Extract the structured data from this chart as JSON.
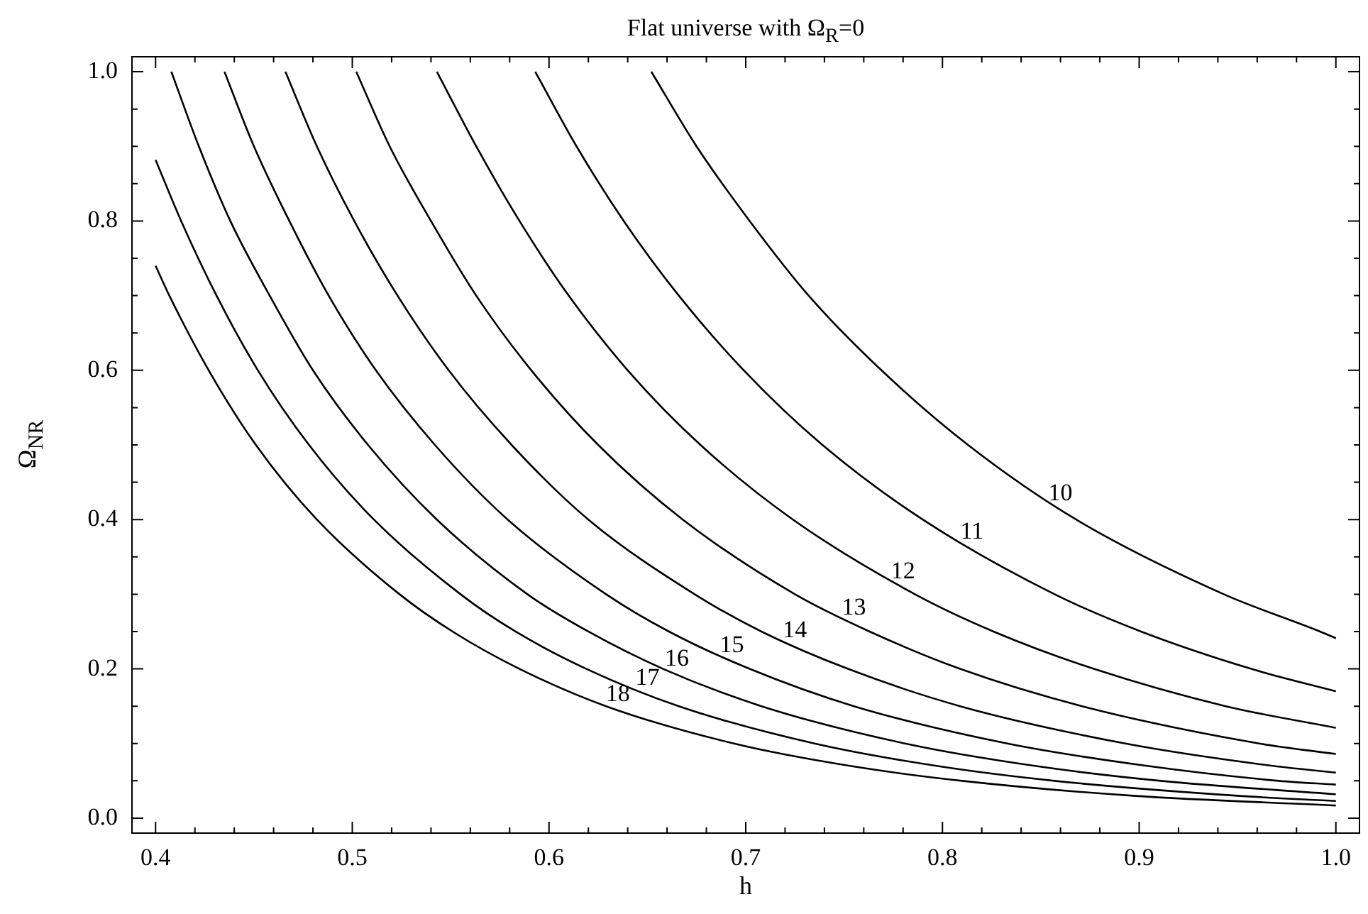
{
  "chart_data": {
    "type": "line",
    "title": "Flat universe with Ω$_{R}$=0",
    "xlabel": "h",
    "ylabel": "Ω$_{NR}$",
    "marker": "none",
    "line_style": "solid",
    "xlim": [
      0.388,
      1.012
    ],
    "ylim": [
      -0.02,
      1.02
    ],
    "xticks": [
      0.4,
      {
        "value": 0.42,
        "label": null
      },
      {
        "value": 0.44,
        "label": null
      },
      {
        "value": 0.46,
        "label": null
      },
      {
        "value": 0.48,
        "label": null
      },
      0.5,
      {
        "value": 0.52,
        "label": null
      },
      {
        "value": 0.54,
        "label": null
      },
      {
        "value": 0.56,
        "label": null
      },
      {
        "value": 0.58,
        "label": null
      },
      0.6,
      {
        "value": 0.62,
        "label": null
      },
      {
        "value": 0.64,
        "label": null
      },
      {
        "value": 0.66,
        "label": null
      },
      {
        "value": 0.68,
        "label": null
      },
      0.7,
      {
        "value": 0.72,
        "label": null
      },
      {
        "value": 0.74,
        "label": null
      },
      {
        "value": 0.76,
        "label": null
      },
      {
        "value": 0.78,
        "label": null
      },
      0.8,
      {
        "value": 0.82,
        "label": null
      },
      {
        "value": 0.84,
        "label": null
      },
      {
        "value": 0.86,
        "label": null
      },
      {
        "value": 0.88,
        "label": null
      },
      0.9,
      {
        "value": 0.92,
        "label": null
      },
      {
        "value": 0.94,
        "label": null
      },
      {
        "value": 0.96,
        "label": null
      },
      {
        "value": 0.98,
        "label": null
      },
      {
        "value": 1.0,
        "label": "1.0"
      }
    ],
    "yticks": [
      {
        "value": 0,
        "label": "0.0"
      },
      {
        "value": 0.05,
        "label": null
      },
      {
        "value": 0.1,
        "label": null
      },
      {
        "value": 0.15,
        "label": null
      },
      0.2,
      {
        "value": 0.25,
        "label": null
      },
      {
        "value": 0.3,
        "label": null
      },
      {
        "value": 0.35,
        "label": null
      },
      0.4,
      {
        "value": 0.45,
        "label": null
      },
      {
        "value": 0.5,
        "label": null
      },
      {
        "value": 0.55,
        "label": null
      },
      0.6,
      {
        "value": 0.65,
        "label": null
      },
      {
        "value": 0.7,
        "label": null
      },
      {
        "value": 0.75,
        "label": null
      },
      0.8,
      {
        "value": 0.85,
        "label": null
      },
      {
        "value": 0.9,
        "label": null
      },
      {
        "value": 0.95,
        "label": null
      },
      {
        "value": 1.0,
        "label": "1.0"
      }
    ],
    "series": [
      {
        "color": "#000000",
        "x": [
          0.652,
          0.675,
          0.702,
          0.732,
          0.769,
          0.813,
          0.868,
          0.943,
          0.992,
          1.0
        ],
        "values": [
          1.0,
          0.9,
          0.8,
          0.7,
          0.6,
          0.5,
          0.4,
          0.3,
          0.25,
          0.241
        ]
      },
      {
        "color": "#000000",
        "x": [
          0.593,
          0.614,
          0.638,
          0.666,
          0.699,
          0.739,
          0.79,
          0.857,
          0.901,
          0.957,
          1.0
        ],
        "values": [
          1.0,
          0.9,
          0.8,
          0.7,
          0.6,
          0.5,
          0.4,
          0.3,
          0.25,
          0.2,
          0.17
        ]
      },
      {
        "color": "#000000",
        "x": [
          0.543,
          0.563,
          0.585,
          0.61,
          0.64,
          0.677,
          0.724,
          0.786,
          0.826,
          0.877,
          0.944,
          1.0
        ],
        "values": [
          1.0,
          0.9,
          0.8,
          0.7,
          0.6,
          0.5,
          0.4,
          0.3,
          0.25,
          0.2,
          0.15,
          0.121
        ]
      },
      {
        "color": "#000000",
        "x": [
          0.502,
          0.519,
          0.54,
          0.563,
          0.591,
          0.625,
          0.668,
          0.725,
          0.763,
          0.809,
          0.871,
          0.961,
          1.0
        ],
        "values": [
          1.0,
          0.9,
          0.8,
          0.7,
          0.6,
          0.5,
          0.4,
          0.3,
          0.25,
          0.2,
          0.15,
          0.1,
          0.086
        ]
      },
      {
        "color": "#000000",
        "x": [
          0.466,
          0.482,
          0.501,
          0.523,
          0.549,
          0.581,
          0.62,
          0.674,
          0.708,
          0.752,
          0.809,
          0.893,
          0.968,
          1.0
        ],
        "values": [
          1.0,
          0.9,
          0.8,
          0.7,
          0.6,
          0.5,
          0.4,
          0.3,
          0.25,
          0.2,
          0.15,
          0.1,
          0.07,
          0.061
        ]
      },
      {
        "color": "#000000",
        "x": [
          0.435,
          0.45,
          0.468,
          0.488,
          0.512,
          0.542,
          0.579,
          0.629,
          0.661,
          0.702,
          0.755,
          0.833,
          0.904,
          0.971,
          1.0
        ],
        "values": [
          1.0,
          0.9,
          0.8,
          0.7,
          0.6,
          0.5,
          0.4,
          0.3,
          0.25,
          0.2,
          0.15,
          0.1,
          0.07,
          0.05,
          0.045
        ]
      },
      {
        "color": "#000000",
        "x": [
          0.408,
          0.422,
          0.438,
          0.458,
          0.48,
          0.508,
          0.543,
          0.589,
          0.62,
          0.658,
          0.708,
          0.781,
          0.847,
          0.911,
          1.0
        ],
        "values": [
          1.0,
          0.9,
          0.8,
          0.7,
          0.6,
          0.5,
          0.4,
          0.3,
          0.25,
          0.2,
          0.15,
          0.1,
          0.07,
          0.05,
          0.032
        ]
      },
      {
        "color": "#000000",
        "x": [
          0.4,
          0.413,
          0.431,
          0.452,
          0.478,
          0.511,
          0.555,
          0.583,
          0.619,
          0.666,
          0.735,
          0.797,
          0.857,
          0.95,
          1.0
        ],
        "values": [
          0.882,
          0.8,
          0.7,
          0.6,
          0.5,
          0.4,
          0.3,
          0.25,
          0.2,
          0.15,
          0.1,
          0.07,
          0.05,
          0.03,
          0.023
        ]
      },
      {
        "color": "#000000",
        "x": [
          0.4,
          0.407,
          0.427,
          0.451,
          0.482,
          0.524,
          0.551,
          0.585,
          0.629,
          0.694,
          0.753,
          0.81,
          0.897,
          1.0
        ],
        "values": [
          0.74,
          0.7,
          0.6,
          0.5,
          0.4,
          0.3,
          0.25,
          0.2,
          0.15,
          0.1,
          0.07,
          0.05,
          0.03,
          0.017
        ]
      }
    ],
    "annotations": [
      {
        "text": "10",
        "x": 0.86,
        "y": 0.414
      },
      {
        "text": "11",
        "x": 0.815,
        "y": 0.363
      },
      {
        "text": "12",
        "x": 0.78,
        "y": 0.31
      },
      {
        "text": "13",
        "x": 0.755,
        "y": 0.261
      },
      {
        "text": "14",
        "x": 0.725,
        "y": 0.231
      },
      {
        "text": "15",
        "x": 0.693,
        "y": 0.211
      },
      {
        "text": "16",
        "x": 0.665,
        "y": 0.193
      },
      {
        "text": "17",
        "x": 0.65,
        "y": 0.167
      },
      {
        "text": "18",
        "x": 0.635,
        "y": 0.145
      }
    ]
  }
}
